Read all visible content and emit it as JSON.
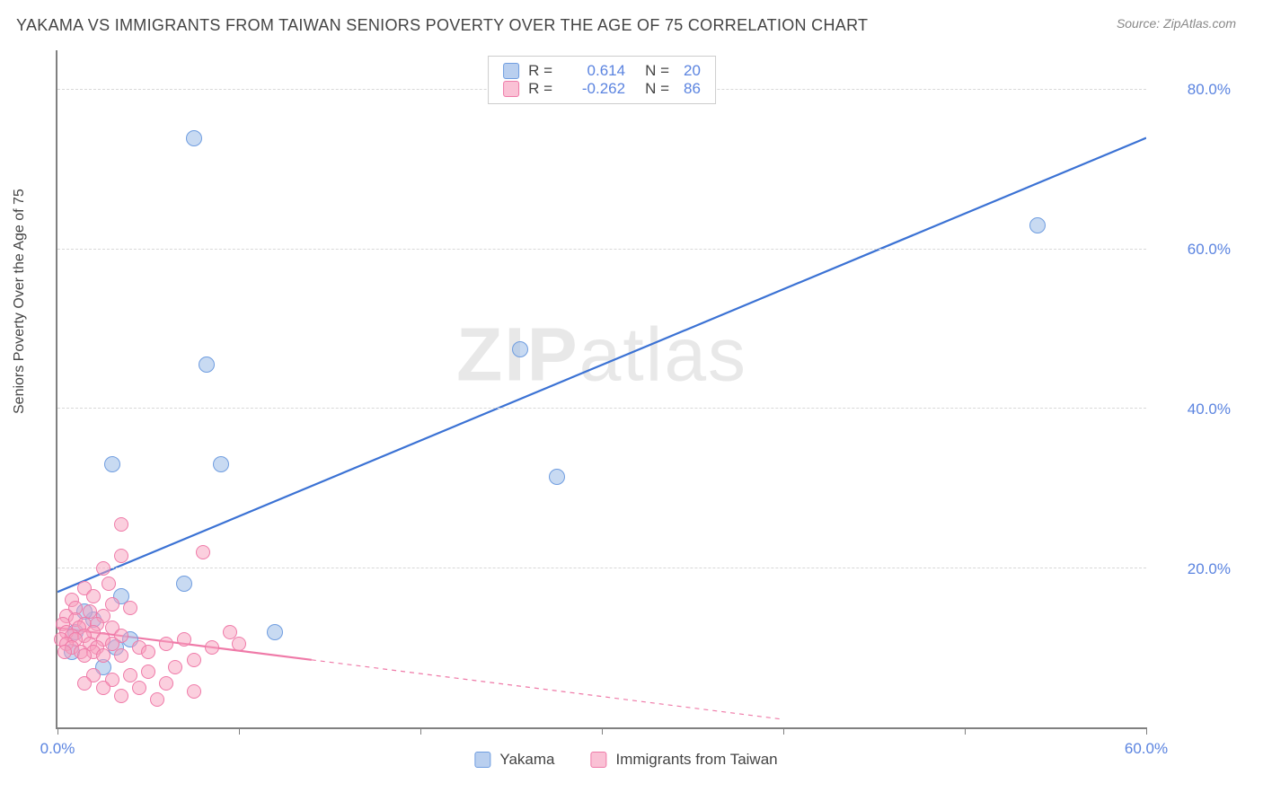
{
  "header": {
    "title": "YAKAMA VS IMMIGRANTS FROM TAIWAN SENIORS POVERTY OVER THE AGE OF 75 CORRELATION CHART",
    "source": "Source: ZipAtlas.com"
  },
  "watermark": {
    "zip": "ZIP",
    "atlas": "atlas"
  },
  "ylabel": "Seniors Poverty Over the Age of 75",
  "chart": {
    "type": "scatter",
    "background_color": "#ffffff",
    "grid_color": "#d8d8d8",
    "axis_color": "#808080",
    "tick_label_color": "#5b84e0",
    "tick_label_fontsize": 17,
    "xlim": [
      0,
      60
    ],
    "ylim": [
      0,
      85
    ],
    "xticks": [
      0,
      10,
      20,
      30,
      40,
      50,
      60
    ],
    "xtick_labels": {
      "0": "0.0%",
      "60": "60.0%"
    },
    "yticks": [
      20,
      40,
      60,
      80
    ],
    "ytick_labels": {
      "20": "20.0%",
      "40": "40.0%",
      "60": "60.0%",
      "80": "80.0%"
    },
    "marker_radius_blue": 9,
    "marker_radius_pink": 8,
    "series": [
      {
        "name": "Yakama",
        "color_fill": "rgba(155,187,232,0.55)",
        "color_stroke": "#6f9de0",
        "R": "0.614",
        "N": "20",
        "trend": {
          "color": "#3b72d4",
          "width": 2.2,
          "dash_from_x": 60,
          "x1": 0,
          "y1": 17.0,
          "x2": 60,
          "y2": 74.0
        },
        "points": [
          {
            "x": 7.5,
            "y": 74.0
          },
          {
            "x": 54.0,
            "y": 63.0
          },
          {
            "x": 25.5,
            "y": 47.5
          },
          {
            "x": 8.2,
            "y": 45.5
          },
          {
            "x": 3.0,
            "y": 33.0
          },
          {
            "x": 9.0,
            "y": 33.0
          },
          {
            "x": 27.5,
            "y": 31.5
          },
          {
            "x": 7.0,
            "y": 18.0
          },
          {
            "x": 12.0,
            "y": 12.0
          },
          {
            "x": 3.5,
            "y": 16.5
          },
          {
            "x": 2.5,
            "y": 7.5
          },
          {
            "x": 1.0,
            "y": 12.0
          },
          {
            "x": 2.0,
            "y": 13.5
          },
          {
            "x": 0.8,
            "y": 9.5
          },
          {
            "x": 4.0,
            "y": 11.0
          },
          {
            "x": 1.5,
            "y": 14.5
          },
          {
            "x": 3.2,
            "y": 10.0
          }
        ]
      },
      {
        "name": "Immigrants from Taiwan",
        "color_fill": "rgba(248,160,190,0.5)",
        "color_stroke": "#ef7aa8",
        "R": "-0.262",
        "N": "86",
        "trend": {
          "color": "#ef7aa8",
          "width": 2.2,
          "solid_to_x": 14,
          "x1": 0,
          "y1": 12.5,
          "x2": 40,
          "y2": 1.0
        },
        "points": [
          {
            "x": 3.5,
            "y": 25.5
          },
          {
            "x": 8.0,
            "y": 22.0
          },
          {
            "x": 3.5,
            "y": 21.5
          },
          {
            "x": 2.5,
            "y": 20.0
          },
          {
            "x": 2.8,
            "y": 18.0
          },
          {
            "x": 1.5,
            "y": 17.5
          },
          {
            "x": 0.8,
            "y": 16.0
          },
          {
            "x": 2.0,
            "y": 16.5
          },
          {
            "x": 3.0,
            "y": 15.5
          },
          {
            "x": 4.0,
            "y": 15.0
          },
          {
            "x": 1.0,
            "y": 15.0
          },
          {
            "x": 0.5,
            "y": 14.0
          },
          {
            "x": 1.8,
            "y": 14.5
          },
          {
            "x": 2.5,
            "y": 14.0
          },
          {
            "x": 0.3,
            "y": 13.0
          },
          {
            "x": 1.0,
            "y": 13.5
          },
          {
            "x": 1.5,
            "y": 13.0
          },
          {
            "x": 2.2,
            "y": 13.0
          },
          {
            "x": 3.0,
            "y": 12.5
          },
          {
            "x": 0.5,
            "y": 12.0
          },
          {
            "x": 1.2,
            "y": 12.5
          },
          {
            "x": 2.0,
            "y": 12.0
          },
          {
            "x": 0.8,
            "y": 11.5
          },
          {
            "x": 1.5,
            "y": 11.5
          },
          {
            "x": 2.5,
            "y": 11.0
          },
          {
            "x": 3.5,
            "y": 11.5
          },
          {
            "x": 0.2,
            "y": 11.0
          },
          {
            "x": 1.0,
            "y": 11.0
          },
          {
            "x": 1.8,
            "y": 10.5
          },
          {
            "x": 0.5,
            "y": 10.5
          },
          {
            "x": 2.2,
            "y": 10.0
          },
          {
            "x": 3.0,
            "y": 10.5
          },
          {
            "x": 4.5,
            "y": 10.0
          },
          {
            "x": 0.8,
            "y": 10.0
          },
          {
            "x": 1.3,
            "y": 9.5
          },
          {
            "x": 2.0,
            "y": 9.5
          },
          {
            "x": 0.4,
            "y": 9.5
          },
          {
            "x": 1.5,
            "y": 9.0
          },
          {
            "x": 2.5,
            "y": 9.0
          },
          {
            "x": 3.5,
            "y": 9.0
          },
          {
            "x": 5.0,
            "y": 9.5
          },
          {
            "x": 6.0,
            "y": 10.5
          },
          {
            "x": 7.0,
            "y": 11.0
          },
          {
            "x": 8.5,
            "y": 10.0
          },
          {
            "x": 9.5,
            "y": 12.0
          },
          {
            "x": 10.0,
            "y": 10.5
          },
          {
            "x": 7.5,
            "y": 8.5
          },
          {
            "x": 6.5,
            "y": 7.5
          },
          {
            "x": 5.0,
            "y": 7.0
          },
          {
            "x": 4.0,
            "y": 6.5
          },
          {
            "x": 3.0,
            "y": 6.0
          },
          {
            "x": 2.0,
            "y": 6.5
          },
          {
            "x": 1.5,
            "y": 5.5
          },
          {
            "x": 2.5,
            "y": 5.0
          },
          {
            "x": 4.5,
            "y": 5.0
          },
          {
            "x": 6.0,
            "y": 5.5
          },
          {
            "x": 7.5,
            "y": 4.5
          },
          {
            "x": 3.5,
            "y": 4.0
          },
          {
            "x": 5.5,
            "y": 3.5
          }
        ]
      }
    ]
  },
  "legend_top": {
    "r_label": "R  =",
    "n_label": "N  ="
  },
  "legend_bottom": {
    "items": [
      "Yakama",
      "Immigrants from Taiwan"
    ]
  }
}
